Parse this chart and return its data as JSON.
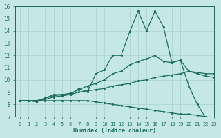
{
  "xlabel": "Humidex (Indice chaleur)",
  "ylabel": "",
  "xlim": [
    -0.5,
    23
  ],
  "ylim": [
    7,
    16
  ],
  "xticks": [
    0,
    1,
    2,
    3,
    4,
    5,
    6,
    7,
    8,
    9,
    10,
    11,
    12,
    13,
    14,
    15,
    16,
    17,
    18,
    19,
    20,
    21,
    22,
    23
  ],
  "yticks": [
    7,
    8,
    9,
    10,
    11,
    12,
    13,
    14,
    15,
    16
  ],
  "bg_color": "#c5e8e4",
  "line_color": "#1a6b5a",
  "grid_color": "#b0d8d0",
  "series": [
    {
      "x": [
        0,
        1,
        2,
        3,
        4,
        5,
        6,
        7,
        8,
        9,
        10,
        11,
        12,
        13,
        14,
        15,
        16,
        17,
        18,
        19,
        20,
        21,
        22,
        23
      ],
      "y": [
        8.3,
        8.3,
        8.2,
        8.5,
        8.8,
        8.8,
        8.8,
        9.3,
        9.0,
        10.5,
        10.8,
        12.0,
        12.0,
        13.9,
        15.6,
        14.0,
        15.6,
        14.3,
        11.4,
        11.6,
        9.5,
        8.0,
        6.9,
        6.9
      ]
    },
    {
      "x": [
        0,
        1,
        2,
        3,
        4,
        5,
        6,
        7,
        8,
        9,
        10,
        11,
        12,
        13,
        14,
        15,
        16,
        17,
        18,
        19,
        20,
        21,
        22,
        23
      ],
      "y": [
        8.3,
        8.3,
        8.3,
        8.5,
        8.7,
        8.8,
        8.9,
        9.2,
        9.5,
        9.7,
        10.0,
        10.5,
        10.7,
        11.2,
        11.5,
        11.7,
        12.0,
        11.5,
        11.4,
        11.6,
        10.7,
        10.5,
        10.3,
        10.2
      ]
    },
    {
      "x": [
        0,
        1,
        2,
        3,
        4,
        5,
        6,
        7,
        8,
        9,
        10,
        11,
        12,
        13,
        14,
        15,
        16,
        17,
        18,
        19,
        20,
        21,
        22,
        23
      ],
      "y": [
        8.3,
        8.3,
        8.3,
        8.4,
        8.6,
        8.7,
        8.8,
        9.0,
        9.1,
        9.2,
        9.3,
        9.5,
        9.6,
        9.7,
        9.9,
        10.0,
        10.2,
        10.3,
        10.4,
        10.5,
        10.7,
        10.6,
        10.5,
        10.5
      ]
    },
    {
      "x": [
        0,
        1,
        2,
        3,
        4,
        5,
        6,
        7,
        8,
        9,
        10,
        11,
        12,
        13,
        14,
        15,
        16,
        17,
        18,
        19,
        20,
        21,
        22,
        23
      ],
      "y": [
        8.3,
        8.3,
        8.3,
        8.3,
        8.3,
        8.3,
        8.3,
        8.3,
        8.3,
        8.2,
        8.1,
        8.0,
        7.9,
        7.8,
        7.7,
        7.6,
        7.5,
        7.4,
        7.3,
        7.2,
        7.2,
        7.1,
        7.0,
        6.9
      ]
    }
  ]
}
